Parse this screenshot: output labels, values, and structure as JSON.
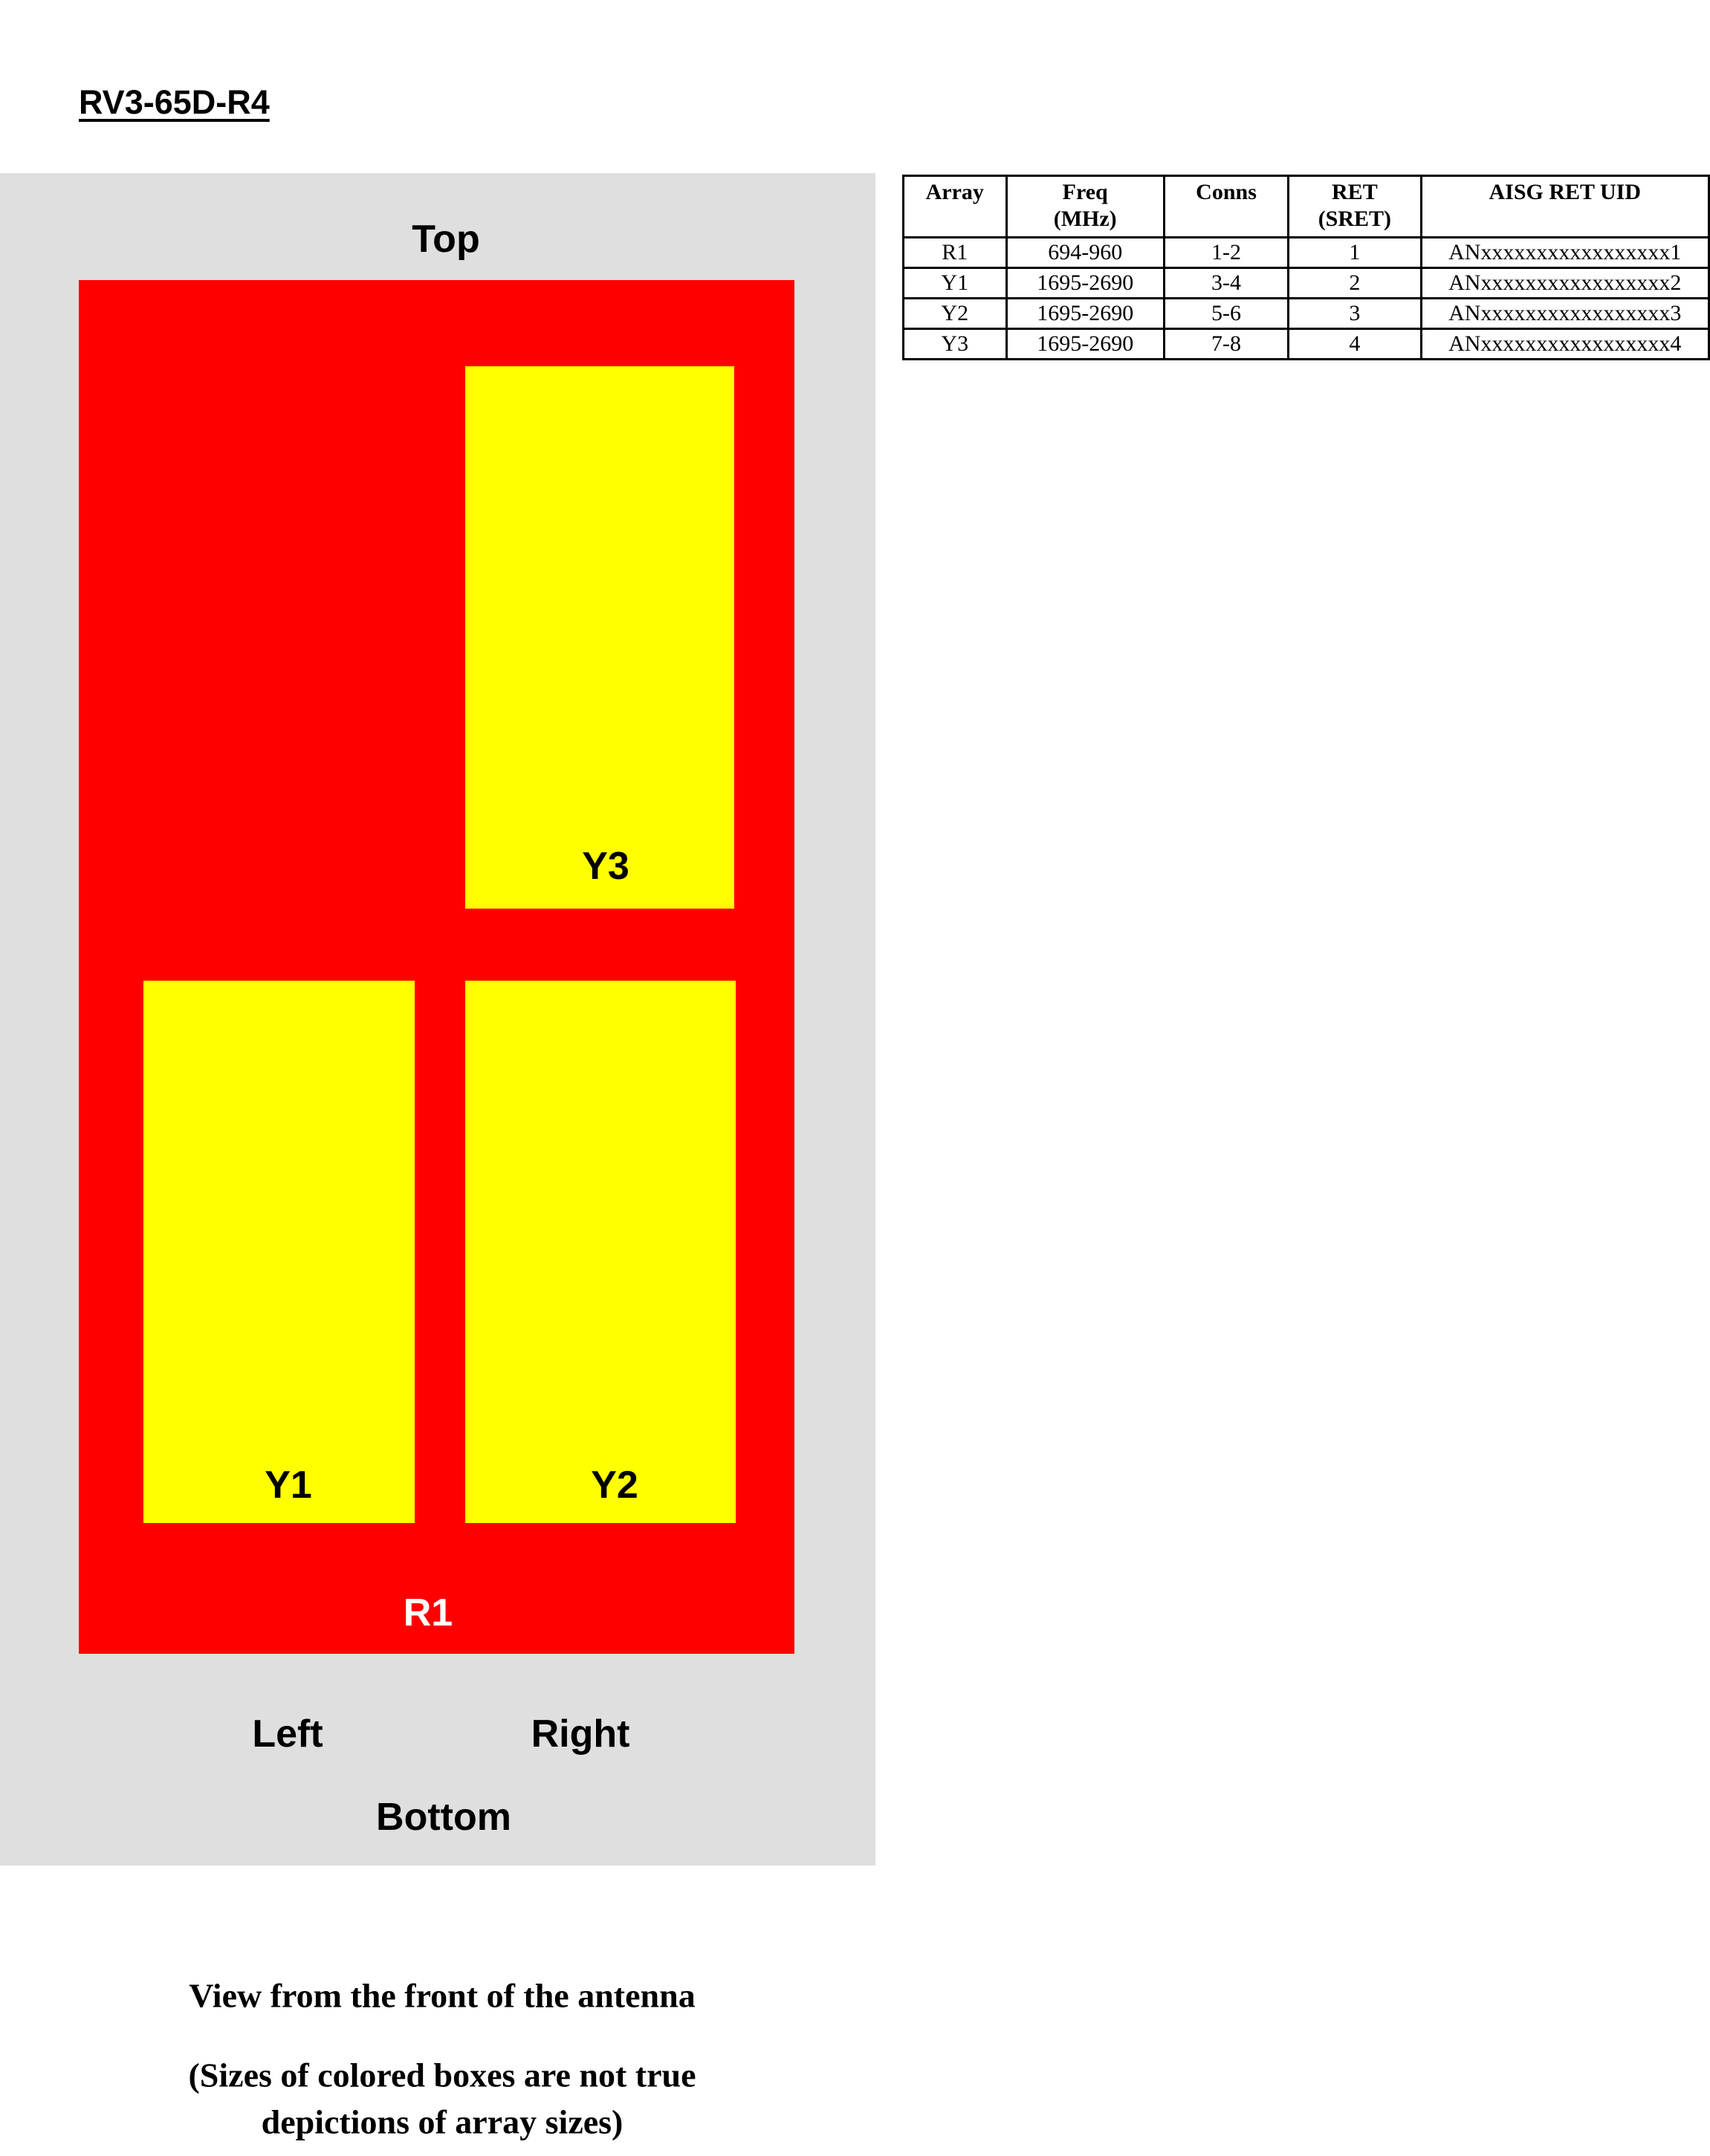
{
  "page": {
    "title": "RV3-65D-R4"
  },
  "diagram": {
    "labels": {
      "top": "Top",
      "left": "Left",
      "right": "Right",
      "bottom": "Bottom",
      "r1": "R1",
      "y1": "Y1",
      "y2": "Y2",
      "y3": "Y3"
    },
    "colors": {
      "panel_bg": "#dfdfdf",
      "array_red": "#ff0000",
      "array_yellow": "#ffff00",
      "r1_label_text": "#ffffff",
      "label_text": "#000000"
    }
  },
  "table": {
    "headers": {
      "array": "Array",
      "freq": "Freq\n(MHz)",
      "conns": "Conns",
      "ret": "RET\n(SRET)",
      "uid": "AISG RET UID"
    },
    "rows": [
      [
        "R1",
        "694-960",
        "1-2",
        "1",
        "ANxxxxxxxxxxxxxxxxx1"
      ],
      [
        "Y1",
        "1695-2690",
        "3-4",
        "2",
        "ANxxxxxxxxxxxxxxxxx2"
      ],
      [
        "Y2",
        "1695-2690",
        "5-6",
        "3",
        "ANxxxxxxxxxxxxxxxxx3"
      ],
      [
        "Y3",
        "1695-2690",
        "7-8",
        "4",
        "ANxxxxxxxxxxxxxxxxx4"
      ]
    ]
  },
  "caption": {
    "line1": "View from the front of the antenna",
    "line2": "(Sizes of colored boxes are not true",
    "line3": "depictions of array sizes)"
  }
}
